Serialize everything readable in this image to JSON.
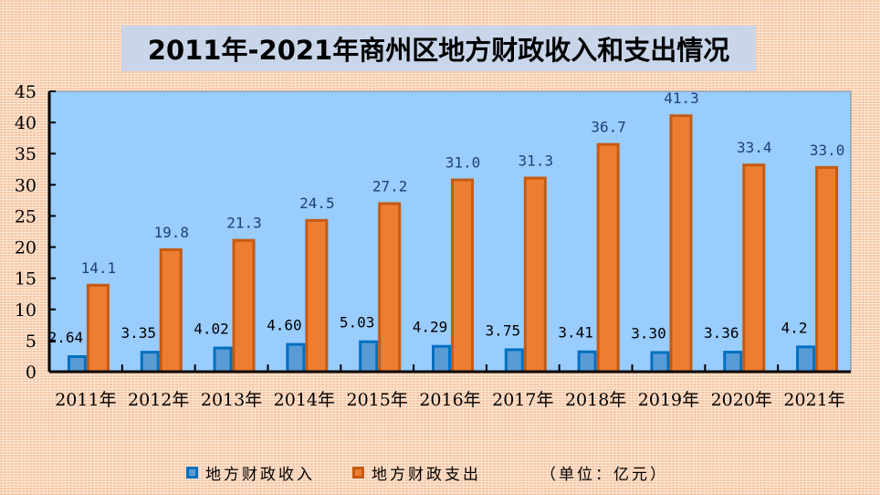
{
  "chart_data": {
    "type": "bar",
    "title": "2011年-2021年商州区地方财政收入和支出情况",
    "categories": [
      "2011年",
      "2012年",
      "2013年",
      "2014年",
      "2015年",
      "2016年",
      "2017年",
      "2018年",
      "2019年",
      "2020年",
      "2021年"
    ],
    "series": [
      {
        "name": "地方财政收入",
        "values": [
          2.64,
          3.35,
          4.02,
          4.6,
          5.03,
          4.29,
          3.75,
          3.41,
          3.3,
          3.36,
          4.2
        ],
        "labels": [
          "2.64",
          "3.35",
          "4.02",
          "4.60",
          "5.03",
          "4.29",
          "3.75",
          "3.41",
          "3.30",
          "3.36",
          "4.2"
        ],
        "color": "#5b9bd5",
        "border": "#0070c0"
      },
      {
        "name": "地方财政支出",
        "values": [
          14.1,
          19.8,
          21.3,
          24.5,
          27.2,
          31.0,
          31.3,
          36.7,
          41.3,
          33.4,
          33.0
        ],
        "labels": [
          "14.1",
          "19.8",
          "21.3",
          "24.5",
          "27.2",
          "31.0",
          "31.3",
          "36.7",
          "41.3",
          "33.4",
          "33.0"
        ],
        "color": "#ed7d31",
        "border": "#c55a11"
      }
    ],
    "ylim": [
      0,
      45
    ],
    "yticks": [
      0,
      5,
      10,
      15,
      20,
      25,
      30,
      35,
      40,
      45
    ],
    "unit_note": "（单位：亿元）",
    "plot_bg": "#99ccff",
    "legend": "bottom"
  }
}
